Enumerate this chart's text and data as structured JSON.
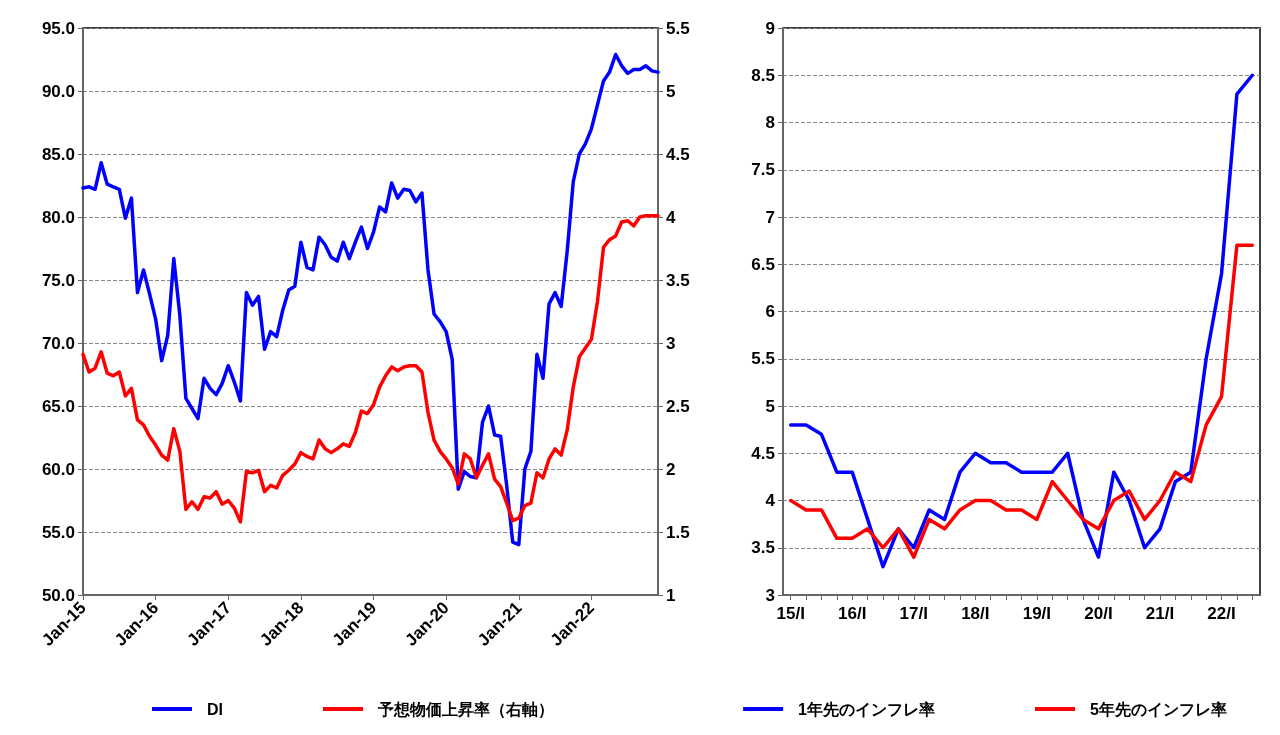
{
  "chart_data": [
    {
      "type": "line",
      "categories": [
        "Jan-15",
        null,
        null,
        null,
        null,
        null,
        null,
        null,
        null,
        null,
        null,
        null,
        "Jan-16",
        null,
        null,
        null,
        null,
        null,
        null,
        null,
        null,
        null,
        null,
        null,
        "Jan-17",
        null,
        null,
        null,
        null,
        null,
        null,
        null,
        null,
        null,
        null,
        null,
        "Jan-18",
        null,
        null,
        null,
        null,
        null,
        null,
        null,
        null,
        null,
        null,
        null,
        "Jan-19",
        null,
        null,
        null,
        null,
        null,
        null,
        null,
        null,
        null,
        null,
        null,
        "Jan-20",
        null,
        null,
        null,
        null,
        null,
        null,
        null,
        null,
        null,
        null,
        null,
        "Jan-21",
        null,
        null,
        null,
        null,
        null,
        null,
        null,
        null,
        null,
        null,
        null,
        "Jan-22",
        null,
        null,
        null,
        null,
        null,
        null,
        null,
        null,
        null,
        null,
        null
      ],
      "series": [
        {
          "name": "DI",
          "color": "#0000ff",
          "values": [
            82.3,
            82.4,
            82.2,
            84.3,
            82.6,
            82.4,
            82.2,
            79.9,
            81.5,
            74.0,
            75.8,
            73.9,
            71.9,
            68.6,
            70.6,
            76.7,
            72.2,
            65.6,
            64.8,
            64.0,
            67.2,
            66.4,
            65.9,
            66.8,
            68.2,
            66.9,
            65.4,
            74.0,
            73.0,
            73.7,
            69.5,
            70.9,
            70.5,
            72.6,
            74.2,
            74.5,
            78.0,
            76.0,
            75.8,
            78.4,
            77.8,
            76.8,
            76.5,
            78.0,
            76.7,
            78.0,
            79.2,
            77.5,
            78.8,
            80.8,
            80.4,
            82.7,
            81.5,
            82.2,
            82.1,
            81.2,
            81.9,
            75.8,
            72.3,
            71.7,
            70.9,
            68.7,
            58.4,
            59.8,
            59.4,
            59.3,
            63.7,
            65.0,
            62.7,
            62.6,
            58.7,
            54.2,
            54.0,
            60.0,
            61.4,
            69.1,
            67.2,
            73.1,
            74.0,
            72.9,
            77.3,
            82.8,
            85.0,
            85.8,
            87.0,
            88.9,
            90.8,
            91.5,
            92.9,
            92.0,
            91.4,
            91.7,
            91.7,
            92.0,
            91.6,
            91.5
          ]
        },
        {
          "name": "予想物価上昇率（右軸）",
          "color": "#ff0000",
          "axis": "y2",
          "values": [
            2.91,
            2.77,
            2.8,
            2.93,
            2.76,
            2.74,
            2.77,
            2.58,
            2.64,
            2.39,
            2.35,
            2.26,
            2.19,
            2.11,
            2.07,
            2.32,
            2.14,
            1.68,
            1.74,
            1.68,
            1.78,
            1.77,
            1.82,
            1.72,
            1.75,
            1.69,
            1.58,
            1.98,
            1.97,
            1.99,
            1.82,
            1.87,
            1.85,
            1.95,
            1.99,
            2.04,
            2.13,
            2.1,
            2.08,
            2.23,
            2.16,
            2.13,
            2.16,
            2.2,
            2.18,
            2.29,
            2.46,
            2.44,
            2.51,
            2.65,
            2.74,
            2.81,
            2.78,
            2.81,
            2.82,
            2.82,
            2.77,
            2.45,
            2.23,
            2.14,
            2.08,
            2.01,
            1.88,
            2.12,
            2.08,
            1.93,
            2.03,
            2.12,
            1.92,
            1.86,
            1.73,
            1.59,
            1.61,
            1.71,
            1.73,
            1.97,
            1.93,
            2.08,
            2.16,
            2.11,
            2.31,
            2.65,
            2.89,
            2.96,
            3.03,
            3.33,
            3.76,
            3.82,
            3.85,
            3.96,
            3.97,
            3.93,
            4.0,
            4.01,
            4.01,
            4.01
          ]
        }
      ],
      "ylim": [
        50,
        95
      ],
      "yticks": [
        {
          "value": 50,
          "label": "50.0"
        },
        {
          "value": 55,
          "label": "55.0"
        },
        {
          "value": 60,
          "label": "60.0"
        },
        {
          "value": 65,
          "label": "65.0"
        },
        {
          "value": 70,
          "label": "70.0"
        },
        {
          "value": 75,
          "label": "75.0"
        },
        {
          "value": 80,
          "label": "80.0"
        },
        {
          "value": 85,
          "label": "85.0"
        },
        {
          "value": 90,
          "label": "90.0"
        },
        {
          "value": 95,
          "label": "95.0"
        }
      ],
      "y2lim": [
        1,
        5.5
      ],
      "y2ticks": [
        1,
        1.5,
        2,
        2.5,
        3,
        3.5,
        4,
        4.5,
        5,
        5.5
      ],
      "grid": "y",
      "legend": "bottom",
      "marker": "none",
      "line_style": "solid"
    },
    {
      "type": "line",
      "categories": [
        "15/I",
        null,
        null,
        null,
        "16/I",
        null,
        null,
        null,
        "17/I",
        null,
        null,
        null,
        "18/I",
        null,
        null,
        null,
        "19/I",
        null,
        null,
        null,
        "20/I",
        null,
        null,
        null,
        "21/I",
        null,
        null,
        null,
        "22/I",
        null,
        null
      ],
      "series": [
        {
          "name": "1年先のインフレ率",
          "color": "#0000ff",
          "values": [
            4.8,
            4.8,
            4.7,
            4.3,
            4.3,
            3.8,
            3.3,
            3.7,
            3.5,
            3.9,
            3.8,
            4.3,
            4.5,
            4.4,
            4.4,
            4.3,
            4.3,
            4.3,
            4.5,
            3.8,
            3.4,
            4.3,
            4.0,
            3.5,
            3.7,
            4.2,
            4.3,
            5.5,
            6.4,
            8.3,
            8.5
          ]
        },
        {
          "name": "5年先のインフレ率",
          "color": "#ff0000",
          "values": [
            4.0,
            3.9,
            3.9,
            3.6,
            3.6,
            3.7,
            3.5,
            3.7,
            3.4,
            3.8,
            3.7,
            3.9,
            4.0,
            4.0,
            3.9,
            3.9,
            3.8,
            4.2,
            4.0,
            3.8,
            3.7,
            4.0,
            4.1,
            3.8,
            4.0,
            4.3,
            4.2,
            4.8,
            5.1,
            6.7,
            6.7
          ]
        }
      ],
      "ylim": [
        3,
        9
      ],
      "yticks": [
        3,
        3.5,
        4,
        4.5,
        5,
        5.5,
        6,
        6.5,
        7,
        7.5,
        8,
        8.5,
        9
      ],
      "grid": "y",
      "legend": "bottom",
      "marker": "none",
      "line_style": "solid"
    }
  ]
}
